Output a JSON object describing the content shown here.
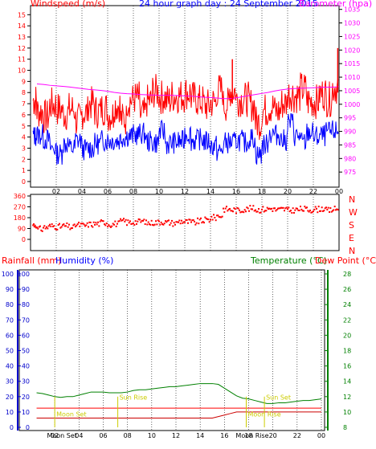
{
  "colors": {
    "windspeed": "#ff0000",
    "gust": "#ff0000",
    "average": "#0000ff",
    "barometer": "#ff00ff",
    "direction": "#ff0000",
    "rainfall": "#cc0000",
    "humidity": "#0000cc",
    "temperature": "#008000",
    "dewpoint": "#ff0000",
    "sun_marker": "#cccc00",
    "moon_marker": "#ffff00",
    "frame": "#000000",
    "grid": "#000000"
  },
  "chart_data": [
    {
      "type": "line",
      "title": "24 hour graph day : 24 September 2015",
      "ylabel_left": "Windspeed (m/s)",
      "ylabel_right": "Barometer (hpa)",
      "x_ticks": [
        "02",
        "04",
        "06",
        "08",
        "10",
        "12",
        "14",
        "16",
        "18",
        "20",
        "22",
        "00"
      ],
      "ylim_left": [
        0,
        15.6
      ],
      "y_ticks_left": [
        0,
        1,
        2,
        3,
        4,
        5,
        6,
        7,
        8,
        9,
        10,
        11,
        12,
        13,
        14,
        15
      ],
      "ylim_right": [
        971.5,
        1035.5
      ],
      "y_ticks_right": [
        975,
        980,
        985,
        990,
        995,
        1000,
        1005,
        1010,
        1015,
        1020,
        1025,
        1030,
        1035
      ],
      "x": [
        0.5,
        1,
        1.5,
        2,
        2.5,
        3,
        3.5,
        4,
        4.5,
        5,
        5.5,
        6,
        6.5,
        7,
        7.5,
        8,
        8.5,
        9,
        9.5,
        10,
        10.5,
        11,
        11.5,
        12,
        12.5,
        13,
        13.5,
        14,
        14.5,
        15,
        15.5,
        16,
        16.5,
        17,
        17.5,
        18,
        18.5,
        19,
        19.5,
        20,
        20.5,
        21,
        21.5,
        22,
        22.5,
        23,
        23.5,
        24
      ],
      "series": [
        {
          "name": "Windspeed",
          "values": [
            7.3,
            6.3,
            5.8,
            6.9,
            6.5,
            6.1,
            6.5,
            5.5,
            6.2,
            7.0,
            6.3,
            6.6,
            6.0,
            6.9,
            5.6,
            7.3,
            7.5,
            6.0,
            7.2,
            8.1,
            7.6,
            7.3,
            7.7,
            7.7,
            8.0,
            7.5,
            7.2,
            6.8,
            7.1,
            8.2,
            6.9,
            8.2,
            7.4,
            7.4,
            6.9,
            5.3,
            6.4,
            6.7,
            6.3,
            7.0,
            7.9,
            7.7,
            8.3,
            7.2,
            7.2,
            7.9,
            7.4,
            8.5
          ]
        },
        {
          "name": "Average",
          "values": [
            4.1,
            4.2,
            3.8,
            3.0,
            2.5,
            3.4,
            3.0,
            3.7,
            2.9,
            3.0,
            3.4,
            3.7,
            3.7,
            3.7,
            4.0,
            4.1,
            4.2,
            4.3,
            3.6,
            3.5,
            4.5,
            3.4,
            3.5,
            3.6,
            4.3,
            3.7,
            3.8,
            3.6,
            3.2,
            2.7,
            3.5,
            3.5,
            3.7,
            3.5,
            3.9,
            2.4,
            3.3,
            4.3,
            4.2,
            3.7,
            5.3,
            4.1,
            3.5,
            4.4,
            4.0,
            4.1,
            4.4,
            4.5
          ]
        },
        {
          "name": "Barometer",
          "axis": "right",
          "values": [
            1007.5,
            1007.3,
            1007.0,
            1006.8,
            1006.6,
            1006.4,
            1006.1,
            1005.8,
            1005.5,
            1005.3,
            1005.1,
            1004.8,
            1004.4,
            1004.1,
            1003.9,
            1003.8,
            1003.6,
            1003.5,
            1003.4,
            1003.3,
            1003.3,
            1003.3,
            1003.2,
            1003.1,
            1003.0,
            1002.8,
            1002.6,
            1002.5,
            1002.3,
            1002.1,
            1002.1,
            1002.4,
            1002.8,
            1003.2,
            1003.6,
            1004.0,
            1004.4,
            1004.9,
            1005.3,
            1005.6,
            1005.8,
            1005.9,
            1006.0,
            1006.1,
            1006.2,
            1006.3,
            1006.3,
            1006.5
          ]
        }
      ],
      "gust_peaks": [
        {
          "x": 15.7,
          "y": 11.0
        },
        {
          "x": 23.9,
          "y": 12.0
        }
      ]
    },
    {
      "type": "scatter",
      "ylabel_right": [
        "N",
        "W",
        "S",
        "E",
        "N"
      ],
      "ylim": [
        0,
        360
      ],
      "y_ticks": [
        0,
        90,
        180,
        270,
        360
      ],
      "x": [
        0.5,
        1,
        1.5,
        2,
        2.5,
        3,
        3.5,
        4,
        4.5,
        5,
        5.5,
        6,
        6.5,
        7,
        7.5,
        8,
        8.5,
        9,
        9.5,
        10,
        10.5,
        11,
        11.5,
        12,
        12.5,
        13,
        13.5,
        14,
        14.5,
        15,
        15.5,
        16,
        16.5,
        17,
        17.5,
        18,
        18.5,
        19,
        19.5,
        20,
        20.5,
        21,
        21.5,
        22,
        22.5,
        23,
        23.5,
        24
      ],
      "series": [
        {
          "name": "Wind direction",
          "values": [
            120,
            85,
            100,
            110,
            105,
            110,
            100,
            120,
            115,
            125,
            130,
            140,
            125,
            130,
            150,
            140,
            145,
            150,
            135,
            140,
            145,
            140,
            135,
            150,
            145,
            140,
            150,
            160,
            180,
            195,
            250,
            245,
            240,
            250,
            255,
            245,
            250,
            255,
            245,
            250,
            240,
            245,
            250,
            245,
            250,
            255,
            240,
            250
          ]
        }
      ]
    },
    {
      "type": "line",
      "ylabel_left": [
        "Rainfall (mm)",
        "Humidity (%)"
      ],
      "ylabel_right": [
        "Temperature (°C)",
        "Dew Point (°C)"
      ],
      "x_ticks": [
        "02",
        "04",
        "06",
        "08",
        "10",
        "12",
        "14",
        "16",
        "18",
        "20",
        "22",
        "00"
      ],
      "ylim_left": [
        0,
        100
      ],
      "y_ticks_left": [
        0,
        10,
        20,
        30,
        40,
        50,
        60,
        70,
        80,
        90,
        100
      ],
      "ylim_right": [
        8,
        28
      ],
      "y_ticks_right": [
        8,
        10,
        12,
        14,
        16,
        18,
        20,
        22,
        24,
        26,
        28
      ],
      "x": [
        0.5,
        1,
        1.5,
        2,
        2.5,
        3,
        3.5,
        4,
        4.5,
        5,
        5.5,
        6,
        6.5,
        7,
        7.5,
        8,
        8.5,
        9,
        9.5,
        10,
        10.5,
        11,
        11.5,
        12,
        12.5,
        13,
        13.5,
        14,
        14.5,
        15,
        15.5,
        16,
        16.5,
        17,
        17.5,
        18,
        18.5,
        19,
        19.5,
        20,
        20.5,
        21,
        21.5,
        22,
        22.5,
        23,
        23.5,
        24
      ],
      "series": [
        {
          "name": "Temperature",
          "axis": "right",
          "values": [
            12.5,
            12.4,
            12.2,
            12.0,
            11.9,
            12.0,
            12.0,
            12.2,
            12.4,
            12.6,
            12.6,
            12.6,
            12.5,
            12.5,
            12.5,
            12.6,
            12.8,
            12.9,
            12.9,
            13.0,
            13.1,
            13.2,
            13.3,
            13.3,
            13.4,
            13.5,
            13.6,
            13.7,
            13.7,
            13.7,
            13.6,
            13.1,
            12.6,
            12.1,
            11.8,
            11.7,
            11.5,
            11.3,
            11.1,
            11.1,
            11.2,
            11.2,
            11.3,
            11.4,
            11.5,
            11.5,
            11.6,
            11.7
          ]
        },
        {
          "name": "Dew Point",
          "axis": "right",
          "values": [
            10.5,
            10.5,
            10.5,
            10.5,
            10.5,
            10.5,
            10.5,
            10.5,
            10.5,
            10.5,
            10.5,
            10.5,
            10.5,
            10.5,
            10.5,
            10.5,
            10.5,
            10.5,
            10.5,
            10.5,
            10.5,
            10.5,
            10.5,
            10.5,
            10.5,
            10.5,
            10.5,
            10.5,
            10.5,
            10.5,
            10.5,
            10.5,
            10.5,
            10.5,
            10.5,
            10.5,
            10.5,
            10.5,
            10.5,
            10.5,
            10.5,
            10.5,
            10.5,
            10.5,
            10.5,
            10.5,
            10.5,
            10.5
          ]
        },
        {
          "name": "Rainfall",
          "axis": "left",
          "values": [
            6,
            6,
            6,
            6,
            6,
            6,
            6,
            6,
            6,
            6,
            6,
            6,
            6,
            6,
            6,
            6,
            6,
            6,
            6,
            6,
            6,
            6,
            6,
            6,
            6,
            6,
            6,
            6,
            6,
            6,
            7,
            8,
            9,
            10,
            10,
            10,
            10,
            10,
            10,
            10,
            10,
            10,
            10,
            10,
            10,
            10,
            10,
            10
          ]
        }
      ],
      "markers": [
        {
          "label": "Moon Set",
          "x": 2.0,
          "y": 7
        },
        {
          "label": "Sun Rise",
          "x": 7.2,
          "y": 18
        },
        {
          "label": "Sun Set",
          "x": 19.3,
          "y": 18
        },
        {
          "label": "Moon Rise",
          "x": 17.8,
          "y": 7
        }
      ],
      "bottom_labels": [
        "Moon Set",
        "Moon Rise"
      ]
    }
  ]
}
